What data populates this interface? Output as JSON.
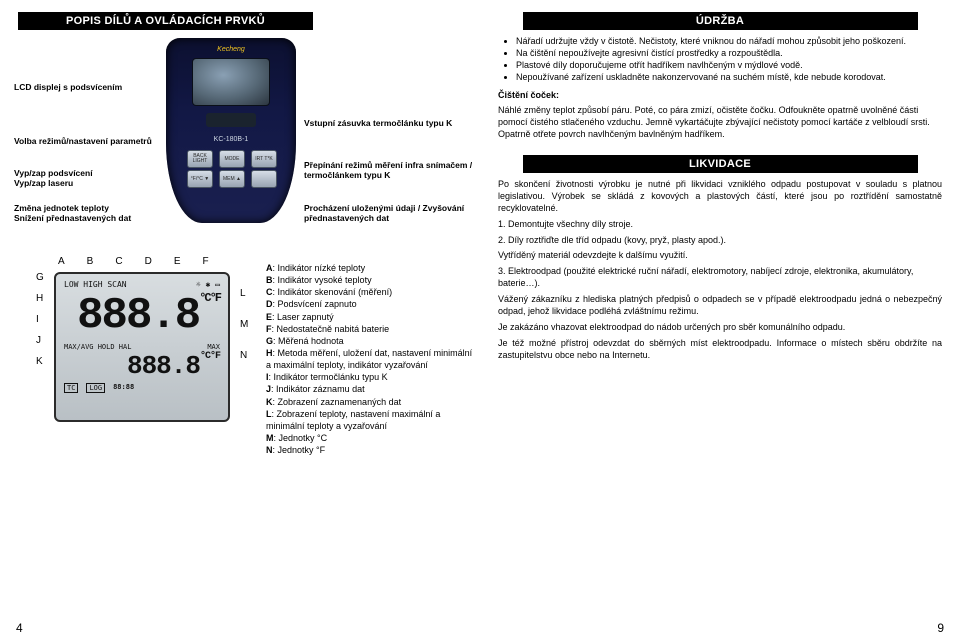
{
  "left": {
    "header": "POPIS DÍLŮ A OVLÁDACÍCH PRVKŮ",
    "device": {
      "brand": "Kecheng",
      "model": "KC-180B-1",
      "buttons": [
        "BACK LIGHT",
        "MODE",
        "IRT T*K",
        "°F/°C ▼",
        "MEM ▲",
        "",
        "",
        "",
        ""
      ]
    },
    "callouts": {
      "lcd": "LCD displej s podsvícením",
      "mode": "Volba režimů/nastavení parametrů",
      "input": "Vstupní zásuvka termočlánku typu K",
      "backlight": "Vyp/zap podsvícení\nVyp/zap laseru",
      "irt": "Přepínání režimů měření infra snímačem / termočlánkem typu K",
      "units": "Změna jednotek teploty\nSnížení přednastavených dat",
      "mem": "Procházení uloženými údaji / Zvyšování přednastavených dat"
    },
    "lcd": {
      "top_letters": [
        "A",
        "B",
        "C",
        "D",
        "E",
        "F"
      ],
      "left_letters": [
        "G",
        "H",
        "I",
        "J",
        "K"
      ],
      "right_letters": [
        "L",
        "M",
        "N"
      ],
      "row1_left": "LOW  HIGH  SCAN",
      "row1_right": "☼ ✱ ▭",
      "main": "888.8",
      "main_unit": "°C°F",
      "mid_left": "MAX/AVG HOLD HAL",
      "mid_right": "MAX",
      "sub": "888.8",
      "sub_unit": "°C°F",
      "bot": [
        "TC",
        "LOG",
        "88:88"
      ]
    },
    "legend": {
      "A": "Indikátor nízké teploty",
      "B": "Indikátor vysoké teploty",
      "C": "Indikátor skenování (měření)",
      "D": "Podsvícení zapnuto",
      "E": "Laser zapnutý",
      "F": "Nedostatečně nabitá baterie",
      "G": "Měřená hodnota",
      "H": "Metoda měření, uložení dat, nastavení minimální a maximální teploty, indikátor vyzařování",
      "I": "Indikátor termočlánku typu K",
      "J": "Indikátor záznamu dat",
      "K": "Zobrazení zaznamenaných dat",
      "L": "Zobrazení teploty, nastavení maximální a minimální teploty a vyzařování",
      "M": "Jednotky °C",
      "N": "Jednotky °F"
    },
    "page_num": "4"
  },
  "right": {
    "header1": "ÚDRŽBA",
    "bullets": [
      "Nářadí udržujte vždy v čistotě. Nečistoty, které vniknou do nářadí mohou způsobit jeho poškození.",
      "Na čištění nepoužívejte agresivní čistící prostředky a rozpouštědla.",
      "Plastové díly doporučujeme otřít hadříkem navlhčeným v mýdlové vodě.",
      "Nepoužívané zařízení uskladněte nakonzervované na suchém místě, kde nebude korodovat."
    ],
    "lens_head": "Čištění čoček:",
    "lens_body": "Náhlé změny teplot způsobí páru. Poté, co pára zmizí, očistěte čočku. Odfoukněte opatrně uvolněné části pomocí čistého stlačeného vzduchu. Jemně vykartáčujte zbývající nečistoty pomocí kartáče z velbloudí srsti. Opatrně otřete povrch navlhčeným bavlněným hadříkem.",
    "header2": "LIKVIDACE",
    "body1": "Po skončení životnosti výrobku je nutné při likvidaci vzniklého odpadu postupovat v souladu s platnou legislativou. Výrobek se skládá z kovových a plastových částí, které jsou po roztřídění samostatně recyklovatelné.",
    "steps": [
      "1. Demontujte všechny díly stroje.",
      "2. Díly roztřiďte dle tříd odpadu (kovy, pryž, plasty apod.).",
      "Vytříděný materiál odevzdejte k dalšímu využití.",
      "3. Elektroodpad (použité elektrické ruční nářadí, elektromotory, nabíjecí zdroje, elektronika, akumulátory, baterie…)."
    ],
    "body2": "Vážený zákazníku z hlediska platných předpisů o odpadech se v případě elektroodpadu jedná o nebezpečný odpad, jehož likvidace podléhá zvláštnímu režimu.",
    "body3": "Je zakázáno vhazovat elektroodpad do nádob určených pro sběr komunálního odpadu.",
    "body4": "Je též možné přístroj odevzdat do sběrných míst elektroodpadu. Informace o místech sběru obdržíte na zastupitelstvu obce nebo na Internetu.",
    "page_num": "9"
  }
}
